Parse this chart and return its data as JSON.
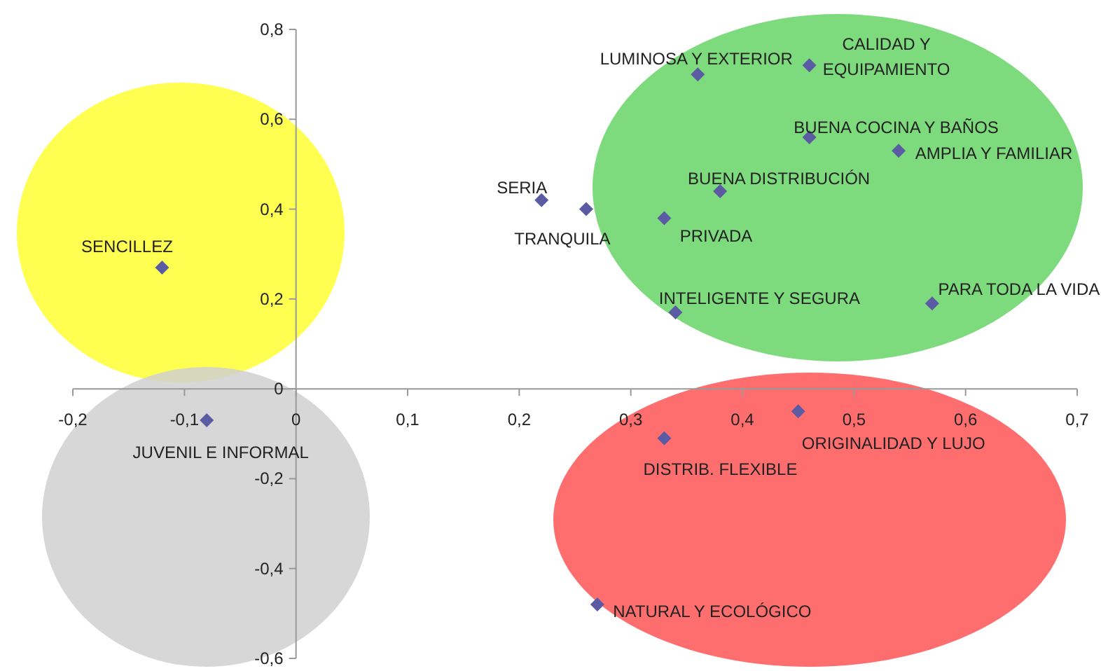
{
  "chart_data": {
    "type": "scatter",
    "marker": "diamond",
    "xlim": [
      -0.2,
      0.7
    ],
    "xticks": [
      {
        "value": -0.2,
        "label": "-0,2"
      },
      {
        "value": -0.1,
        "label": "-0,1"
      },
      0,
      {
        "value": 0.1,
        "label": "0,1"
      },
      {
        "value": 0.2,
        "label": "0,2"
      },
      {
        "value": 0.3,
        "label": "0,3"
      },
      {
        "value": 0.4,
        "label": "0,4"
      },
      {
        "value": 0.5,
        "label": "0,5"
      },
      {
        "value": 0.6,
        "label": "0,6"
      },
      {
        "value": 0.7,
        "label": "0,7"
      }
    ],
    "ylim": [
      -0.6,
      0.8
    ],
    "yticks": [
      {
        "value": -0.6,
        "label": "-0,6"
      },
      {
        "value": -0.4,
        "label": "-0,4"
      },
      {
        "value": -0.2,
        "label": "-0,2"
      },
      0,
      {
        "value": 0.2,
        "label": "0,2"
      },
      {
        "value": 0.4,
        "label": "0,4"
      },
      {
        "value": 0.6,
        "label": "0,6"
      },
      {
        "value": 0.8,
        "label": "0,8"
      }
    ],
    "series": [
      {
        "color": "#5b5ba3",
        "x": [
          0.22,
          0.26,
          -0.12,
          -0.08,
          0.36,
          0.46,
          0.46,
          0.54,
          0.38,
          0.33,
          0.34,
          0.57,
          0.45,
          0.33,
          0.27
        ],
        "values": [
          0.42,
          0.4,
          0.27,
          -0.07,
          0.7,
          0.72,
          0.56,
          0.53,
          0.44,
          0.38,
          0.17,
          0.19,
          -0.05,
          -0.11,
          -0.48
        ]
      }
    ],
    "annotations": [
      {
        "text": "SERIA",
        "x": 0.22,
        "y": 0.42
      },
      {
        "text": "TRANQUILA",
        "x": 0.26,
        "y": 0.4
      },
      {
        "text": "SENCILLEZ",
        "x": -0.12,
        "y": 0.27
      },
      {
        "text": "JUVENIL E INFORMAL",
        "x": -0.08,
        "y": -0.07
      },
      {
        "text": "LUMINOSA Y EXTERIOR",
        "x": 0.36,
        "y": 0.7
      },
      {
        "text": "CALIDAD Y EQUIPAMIENTO",
        "x": 0.46,
        "y": 0.72
      },
      {
        "text": "BUENA COCINA Y BAÑOS",
        "x": 0.46,
        "y": 0.56
      },
      {
        "text": "AMPLIA Y FAMILIAR",
        "x": 0.54,
        "y": 0.53
      },
      {
        "text": "BUENA DISTRIBUCIÓN",
        "x": 0.38,
        "y": 0.44
      },
      {
        "text": "PRIVADA",
        "x": 0.33,
        "y": 0.38
      },
      {
        "text": "INTELIGENTE Y SEGURA",
        "x": 0.34,
        "y": 0.17
      },
      {
        "text": "PARA TODA LA VIDA",
        "x": 0.57,
        "y": 0.19
      },
      {
        "text": "ORIGINALIDAD Y LUJO",
        "x": 0.45,
        "y": -0.05
      },
      {
        "text": "DISTRIB. FLEXIBLE",
        "x": 0.33,
        "y": -0.11
      },
      {
        "text": "NATURAL Y ECOLÓGICO",
        "x": 0.27,
        "y": -0.48
      }
    ]
  }
}
